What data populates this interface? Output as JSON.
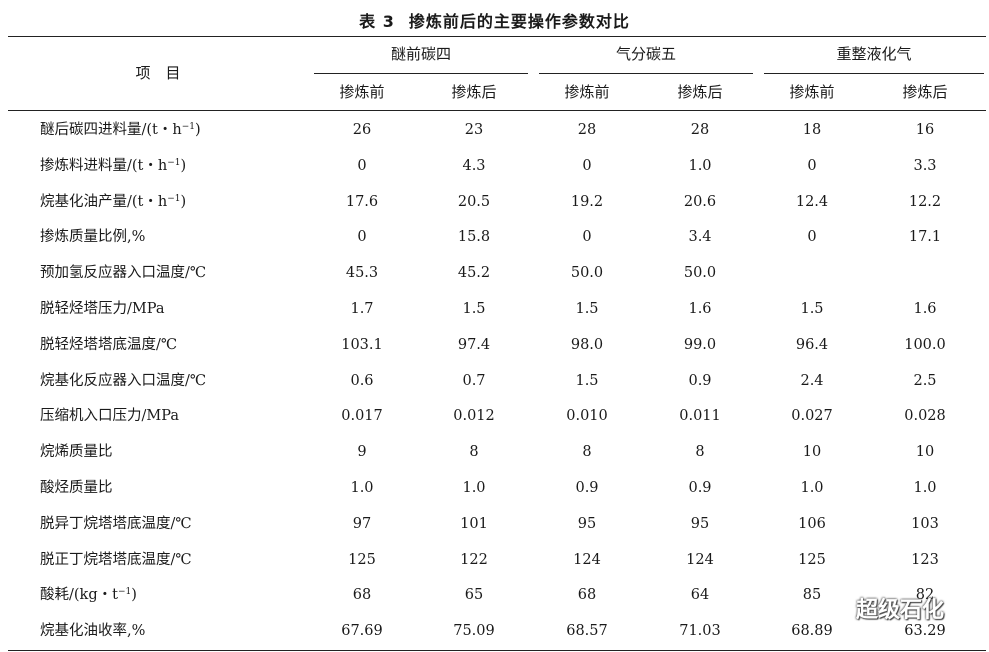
{
  "title": {
    "number": "表 3",
    "text": "掺炼前后的主要操作参数对比"
  },
  "header": {
    "item_label": "项　目",
    "groups": [
      "醚前碳四",
      "气分碳五",
      "重整液化气"
    ],
    "subheads": [
      "掺炼前",
      "掺炼后",
      "掺炼前",
      "掺炼后",
      "掺炼前",
      "掺炼后"
    ]
  },
  "rows": [
    {
      "label": "醚后碳四进料量/(t・h",
      "sup": "−1",
      "tail": ")",
      "values": [
        "26",
        "23",
        "28",
        "28",
        "18",
        "16"
      ]
    },
    {
      "label": "掺炼料进料量/(t・h",
      "sup": "−1",
      "tail": ")",
      "values": [
        "0",
        "4.3",
        "0",
        "1.0",
        "0",
        "3.3"
      ]
    },
    {
      "label": "烷基化油产量/(t・h",
      "sup": "−1",
      "tail": ")",
      "values": [
        "17.6",
        "20.5",
        "19.2",
        "20.6",
        "12.4",
        "12.2"
      ]
    },
    {
      "label": "掺炼质量比例,%",
      "sup": "",
      "tail": "",
      "values": [
        "0",
        "15.8",
        "0",
        "3.4",
        "0",
        "17.1"
      ]
    },
    {
      "label": "预加氢反应器入口温度/℃",
      "sup": "",
      "tail": "",
      "values": [
        "45.3",
        "45.2",
        "50.0",
        "50.0",
        "",
        ""
      ]
    },
    {
      "label": "脱轻烃塔压力/MPa",
      "sup": "",
      "tail": "",
      "values": [
        "1.7",
        "1.5",
        "1.5",
        "1.6",
        "1.5",
        "1.6"
      ]
    },
    {
      "label": "脱轻烃塔塔底温度/℃",
      "sup": "",
      "tail": "",
      "values": [
        "103.1",
        "97.4",
        "98.0",
        "99.0",
        "96.4",
        "100.0"
      ]
    },
    {
      "label": "烷基化反应器入口温度/℃",
      "sup": "",
      "tail": "",
      "values": [
        "0.6",
        "0.7",
        "1.5",
        "0.9",
        "2.4",
        "2.5"
      ]
    },
    {
      "label": "压缩机入口压力/MPa",
      "sup": "",
      "tail": "",
      "values": [
        "0.017",
        "0.012",
        "0.010",
        "0.011",
        "0.027",
        "0.028"
      ]
    },
    {
      "label": "烷烯质量比",
      "sup": "",
      "tail": "",
      "values": [
        "9",
        "8",
        "8",
        "8",
        "10",
        "10"
      ]
    },
    {
      "label": "酸烃质量比",
      "sup": "",
      "tail": "",
      "values": [
        "1.0",
        "1.0",
        "0.9",
        "0.9",
        "1.0",
        "1.0"
      ]
    },
    {
      "label": "脱异丁烷塔塔底温度/℃",
      "sup": "",
      "tail": "",
      "values": [
        "97",
        "101",
        "95",
        "95",
        "106",
        "103"
      ]
    },
    {
      "label": "脱正丁烷塔塔底温度/℃",
      "sup": "",
      "tail": "",
      "values": [
        "125",
        "122",
        "124",
        "124",
        "125",
        "123"
      ]
    },
    {
      "label": "酸耗/(kg・t",
      "sup": "−1",
      "tail": ")",
      "values": [
        "68",
        "65",
        "68",
        "64",
        "85",
        "82"
      ]
    },
    {
      "label": "烷基化油收率,%",
      "sup": "",
      "tail": "",
      "values": [
        "67.69",
        "75.09",
        "68.57",
        "71.03",
        "68.89",
        "63.29"
      ]
    }
  ],
  "watermark": {
    "text": "超级石化",
    "icon": "wechat-icon"
  }
}
